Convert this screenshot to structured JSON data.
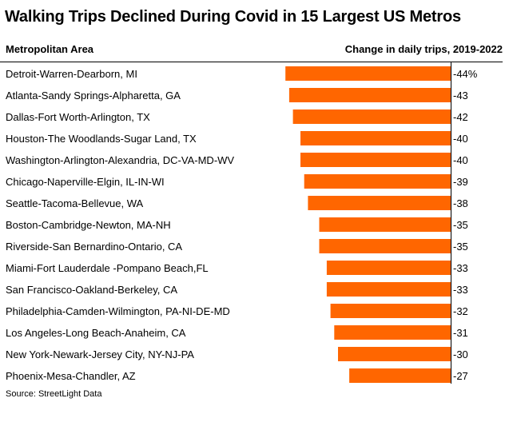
{
  "header": {
    "title": "Walking Trips Declined During Covid in 15 Largest US Metros",
    "left_col": "Metropolitan Area",
    "right_col": "Change in daily trips, 2019-2022"
  },
  "source": "Source: StreetLight Data",
  "colors": {
    "bar": "#ff6600",
    "axis": "#000000"
  },
  "chart_data": {
    "type": "bar",
    "orientation": "horizontal",
    "title": "Walking Trips Declined During Covid in 15 Largest US Metros",
    "xlabel": "Change in daily trips, 2019-2022",
    "ylabel": "Metropolitan Area",
    "unit": "%",
    "xlim": [
      -44,
      0
    ],
    "categories": [
      "Detroit-Warren-Dearborn, MI",
      "Atlanta-Sandy Springs-Alpharetta, GA",
      "Dallas-Fort Worth-Arlington, TX",
      "Houston-The Woodlands-Sugar Land, TX",
      "Washington-Arlington-Alexandria, DC-VA-MD-WV",
      "Chicago-Naperville-Elgin, IL-IN-WI",
      "Seattle-Tacoma-Bellevue, WA",
      "Boston-Cambridge-Newton, MA-NH",
      "Riverside-San Bernardino-Ontario, CA",
      "Miami-Fort Lauderdale -Pompano Beach,FL",
      "San Francisco-Oakland-Berkeley, CA",
      "Philadelphia-Camden-Wilmington, PA-NI-DE-MD",
      "Los Angeles-Long Beach-Anaheim, CA",
      "New York-Newark-Jersey City, NY-NJ-PA",
      "Phoenix-Mesa-Chandler, AZ"
    ],
    "values": [
      -44,
      -43,
      -42,
      -40,
      -40,
      -39,
      -38,
      -35,
      -35,
      -33,
      -33,
      -32,
      -31,
      -30,
      -27
    ],
    "labels": [
      "-44%",
      "-43",
      "-42",
      "-40",
      "-40",
      "-39",
      "-38",
      "-35",
      "-35",
      "-33",
      "-33",
      "-32",
      "-31",
      "-30",
      "-27"
    ]
  }
}
